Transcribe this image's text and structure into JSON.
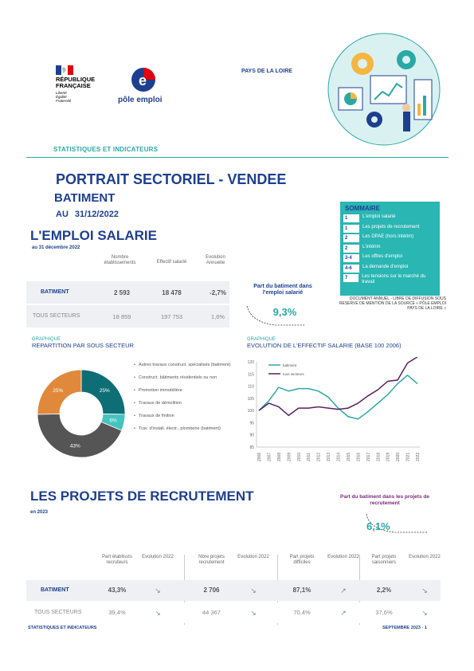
{
  "header": {
    "republic": [
      "RÉPUBLIQUE",
      "FRANÇAISE"
    ],
    "motto": [
      "Liberté",
      "Égalité",
      "Fraternité"
    ],
    "pole_emploi": "pôle emploi",
    "region": "PAYS DE LA LOIRE",
    "stats_title": "STATISTIQUES ET INDICATEURS"
  },
  "title": {
    "main": "PORTRAIT SECTORIEL - VENDEE",
    "sub": "BATIMENT",
    "au": "AU",
    "date": "31/12/2022"
  },
  "emploi": {
    "section": "L'EMPLOI SALARIE",
    "sub": "au 31 décembre 2022",
    "headers": [
      "Nombre établissements",
      "Effectif salarié",
      "Evolution Annuelle"
    ],
    "rows": [
      {
        "label": "BATIMENT",
        "etab": "2 593",
        "eff": "18 478",
        "evol": "-2,7%"
      },
      {
        "label": "TOUS SECTEURS",
        "etab": "18 859",
        "eff": "197 753",
        "evol": "1,6%"
      }
    ],
    "share_label": "Part du batiment dans l'emploi salarié",
    "share_value": "9,3%"
  },
  "sommaire": {
    "title": "SOMMAIRE",
    "items": [
      {
        "num": "1",
        "label": "L'emploi salarié"
      },
      {
        "num": "1",
        "label": "Les projets de recrutement"
      },
      {
        "num": "2",
        "label": "Les DPAE (hors intérim)"
      },
      {
        "num": "2",
        "label": "L'intérim"
      },
      {
        "num": "3-4",
        "label": "Les offres d'emploi"
      },
      {
        "num": "4-6",
        "label": "La demande d'emploi"
      },
      {
        "num": "7",
        "label": "Les tensions sur le marché du travail"
      }
    ],
    "note": "DOCUMENT ANNUEL - LIBRE DE DIFFUSION SOUS RESERVE DE MENTION DE LA SOURCE « PÔLE EMPLOI PAYS DE LA LOIRE »"
  },
  "graph1": {
    "cap_small": "GRAPHIQUE",
    "cap_big": "REPARTITION PAR SOUS SECTEUR"
  },
  "graph2": {
    "cap_small": "GRAPHIQUE",
    "cap_big": "EVOLUTION DE L'EFFECTIF SALARIE  (BASE 100 2006)"
  },
  "chart_data": [
    {
      "type": "pie",
      "categories": [
        "Autres travaux construct. spécialisés (batiment)",
        "Construct. bâtiments résidentiels ou non",
        "Promotion immobilière",
        "Travaux de démolition",
        "Travaux de finition",
        "Trav. d'install. électr., plomberie (batiment)"
      ],
      "values": [
        25,
        6,
        0,
        0,
        43,
        25
      ],
      "labels": [
        "25%",
        "6%",
        "",
        "",
        "43%",
        "25%"
      ],
      "colors": [
        "#0e6e76",
        "#45c3c1",
        "#7a2a7a",
        "#9a9a9a",
        "#555555",
        "#e0893a"
      ]
    },
    {
      "type": "line",
      "x": [
        "2006",
        "2007",
        "2008",
        "2009",
        "2010",
        "2011",
        "2012",
        "2013",
        "2014",
        "2015",
        "2016",
        "2017",
        "2018",
        "2019",
        "2020",
        "2021",
        "2022"
      ],
      "series": [
        {
          "name": "batiment",
          "color": "#2aa8a6",
          "values": [
            100,
            104,
            109.5,
            108,
            109,
            109,
            108,
            105.5,
            101,
            97.5,
            96.5,
            99.5,
            103,
            106.5,
            111,
            114.5,
            111
          ]
        },
        {
          "name": "tous secteurs",
          "color": "#5b1f5f",
          "values": [
            100,
            103,
            101.5,
            98,
            101,
            101,
            101.5,
            101,
            100.5,
            101,
            103,
            106,
            108.5,
            112,
            112.5,
            119.5,
            122
          ]
        }
      ],
      "ylim": [
        85,
        120
      ],
      "yticks": [
        "85",
        "90",
        "95",
        "100",
        "105",
        "110",
        "115",
        "120"
      ]
    }
  ],
  "recrutement": {
    "section": "LES PROJETS DE RECRUTEMENT",
    "sub": "en 2023",
    "share_label": "Part du batiment dans les projets de recrutement",
    "share_value": "6,1%",
    "headers": [
      "Part établissts recruteurs",
      "Evolution 2022",
      "Nbre projets recrutement",
      "Evolution 2022",
      "Part projets difficiles",
      "Evolution 2022",
      "Part projets saisonniers",
      "Evolution 2022"
    ],
    "rows": [
      {
        "label": "BATIMENT",
        "v1": "43,3%",
        "a1": "↘",
        "v2": "2 706",
        "a2": "↘",
        "v3": "87,1%",
        "a3": "↗",
        "v4": "2,2%",
        "a4": "↘"
      },
      {
        "label": "TOUS SECTEURS",
        "v1": "39,4%",
        "a1": "↘",
        "v2": "44 367",
        "a2": "↘",
        "v3": "70,4%",
        "a3": "↗",
        "v4": "37,6%",
        "a4": "↘"
      }
    ]
  },
  "footer": {
    "left": "STATISTIQUES ET INDICATEURS",
    "right": "SEPTEMBRE 2023  - 1"
  }
}
